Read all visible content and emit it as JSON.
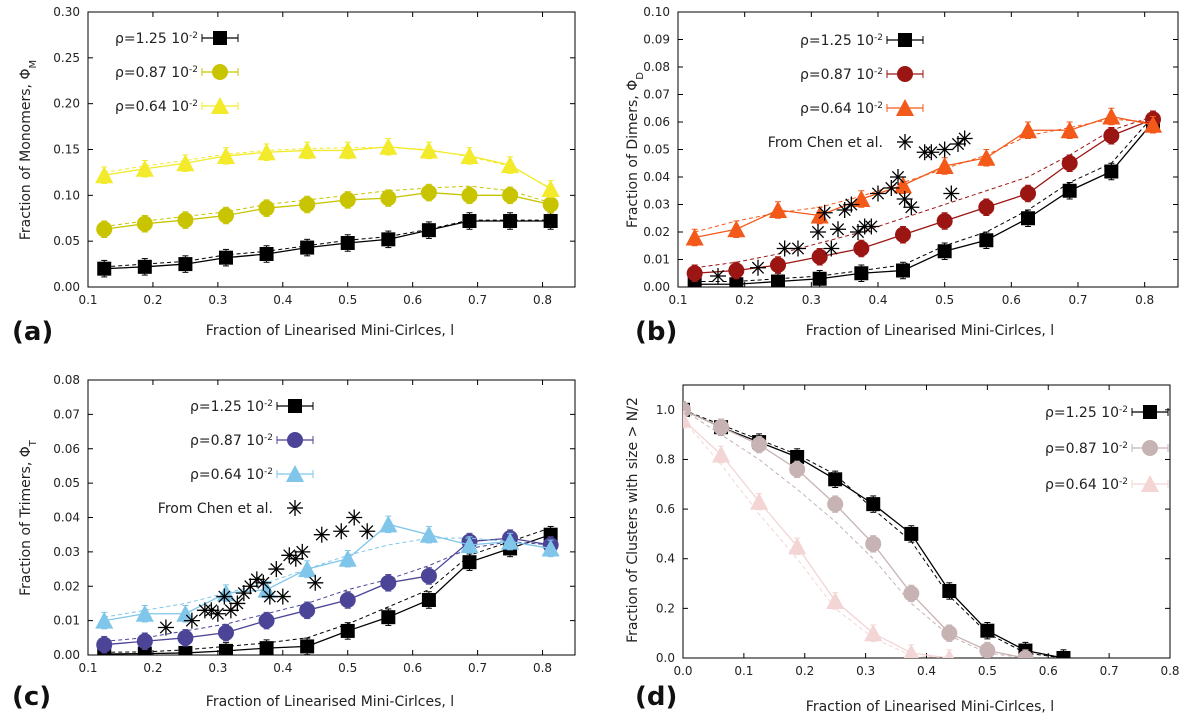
{
  "chart_data": [
    {
      "panel_label": "(a)",
      "type": "line",
      "xlabel": "Fraction of Linearised Mini-Cirlces, l",
      "ylabel": "Fraction of Monomers, Φ_M",
      "xlim": [
        0.1,
        0.85
      ],
      "ylim": [
        0,
        0.3
      ],
      "xticks": [
        "0.1",
        "0.2",
        "0.3",
        "0.4",
        "0.5",
        "0.6",
        "0.7",
        "0.8"
      ],
      "yticks": [
        "0.00",
        "0.05",
        "0.10",
        "0.15",
        "0.20",
        "0.25",
        "0.30"
      ],
      "xtick_values": [
        0.1,
        0.2,
        0.3,
        0.4,
        0.5,
        0.6,
        0.7,
        0.8
      ],
      "ytick_values": [
        0,
        0.05,
        0.1,
        0.15,
        0.2,
        0.25,
        0.3
      ],
      "x": [
        0.125,
        0.1875,
        0.25,
        0.3125,
        0.375,
        0.4375,
        0.5,
        0.5625,
        0.625,
        0.6875,
        0.75,
        0.8125
      ],
      "legend_position": "top-left",
      "series": [
        {
          "name": "ρ=1.25 10⁻²",
          "color": "#000000",
          "marker": "square",
          "values": [
            0.02,
            0.022,
            0.025,
            0.032,
            0.036,
            0.043,
            0.048,
            0.052,
            0.062,
            0.072,
            0.072,
            0.072
          ],
          "dashed": [
            0.022,
            0.025,
            0.028,
            0.035,
            0.039,
            0.045,
            0.051,
            0.055,
            0.063,
            0.073,
            0.073,
            0.073
          ]
        },
        {
          "name": "ρ=0.87 10⁻²",
          "color": "#c8c400",
          "marker": "circle",
          "values": [
            0.063,
            0.069,
            0.073,
            0.078,
            0.086,
            0.09,
            0.095,
            0.097,
            0.103,
            0.1,
            0.1,
            0.09
          ],
          "dashed": [
            0.066,
            0.072,
            0.077,
            0.082,
            0.09,
            0.095,
            0.1,
            0.105,
            0.108,
            0.11,
            0.105,
            0.092
          ]
        },
        {
          "name": "ρ=0.64 10⁻²",
          "color": "#f2ea2a",
          "marker": "triangle",
          "values": [
            0.122,
            0.129,
            0.135,
            0.143,
            0.147,
            0.149,
            0.149,
            0.153,
            0.149,
            0.143,
            0.133,
            0.107
          ],
          "dashed": [
            0.125,
            0.132,
            0.138,
            0.145,
            0.149,
            0.151,
            0.152,
            0.152,
            0.15,
            0.142,
            0.132,
            0.108
          ]
        }
      ]
    },
    {
      "panel_label": "(b)",
      "type": "line",
      "xlabel": "Fraction of Linearised Mini-Cirlces, l",
      "ylabel": "Fraction of Dimers, Φ_D",
      "xlim": [
        0.1,
        0.85
      ],
      "ylim": [
        0,
        0.1
      ],
      "xticks": [
        "0.1",
        "0.2",
        "0.3",
        "0.4",
        "0.5",
        "0.6",
        "0.7",
        "0.8"
      ],
      "yticks": [
        "0.00",
        "0.01",
        "0.02",
        "0.03",
        "0.04",
        "0.05",
        "0.06",
        "0.07",
        "0.08",
        "0.09",
        "0.10"
      ],
      "xtick_values": [
        0.1,
        0.2,
        0.3,
        0.4,
        0.5,
        0.6,
        0.7,
        0.8
      ],
      "ytick_values": [
        0,
        0.01,
        0.02,
        0.03,
        0.04,
        0.05,
        0.06,
        0.07,
        0.08,
        0.09,
        0.1
      ],
      "x": [
        0.125,
        0.1875,
        0.25,
        0.3125,
        0.375,
        0.4375,
        0.5,
        0.5625,
        0.625,
        0.6875,
        0.75,
        0.8125
      ],
      "legend_position": "top-left",
      "series": [
        {
          "name": "ρ=1.25 10⁻²",
          "color": "#000000",
          "marker": "square",
          "values": [
            0.001,
            0.001,
            0.002,
            0.003,
            0.005,
            0.006,
            0.013,
            0.017,
            0.025,
            0.035,
            0.042,
            0.06
          ],
          "dashed": [
            0.002,
            0.002,
            0.003,
            0.004,
            0.006,
            0.008,
            0.015,
            0.02,
            0.028,
            0.038,
            0.045,
            0.062
          ]
        },
        {
          "name": "ρ=0.87 10⁻²",
          "color": "#9b1512",
          "marker": "circle",
          "values": [
            0.005,
            0.006,
            0.008,
            0.011,
            0.014,
            0.019,
            0.024,
            0.029,
            0.034,
            0.045,
            0.055,
            0.061
          ],
          "dashed": [
            0.007,
            0.009,
            0.012,
            0.016,
            0.02,
            0.025,
            0.03,
            0.035,
            0.04,
            0.048,
            0.057,
            0.062
          ]
        },
        {
          "name": "ρ=0.64 10⁻²",
          "color": "#f35a1a",
          "marker": "triangle",
          "values": [
            0.018,
            0.021,
            0.028,
            0.026,
            0.032,
            0.037,
            0.044,
            0.047,
            0.057,
            0.057,
            0.062,
            0.059
          ],
          "dashed": [
            0.02,
            0.024,
            0.027,
            0.029,
            0.033,
            0.038,
            0.043,
            0.048,
            0.055,
            0.058,
            0.061,
            0.06
          ]
        },
        {
          "name": "From Chen et al.",
          "color": "#000000",
          "marker": "star",
          "type": "scatter",
          "x": [
            0.16,
            0.22,
            0.26,
            0.28,
            0.31,
            0.32,
            0.33,
            0.34,
            0.35,
            0.36,
            0.37,
            0.38,
            0.39,
            0.4,
            0.42,
            0.43,
            0.44,
            0.45,
            0.47,
            0.48,
            0.5,
            0.51,
            0.52,
            0.53
          ],
          "values": [
            0.004,
            0.007,
            0.014,
            0.014,
            0.02,
            0.027,
            0.014,
            0.021,
            0.028,
            0.03,
            0.02,
            0.022,
            0.022,
            0.034,
            0.036,
            0.04,
            0.032,
            0.029,
            0.049,
            0.049,
            0.05,
            0.034,
            0.052,
            0.054
          ]
        }
      ]
    },
    {
      "panel_label": "(c)",
      "type": "line",
      "xlabel": "Fraction of Linearised Mini-Cirlces, l",
      "ylabel": "Fraction of Trimers, Φ_T",
      "xlim": [
        0.1,
        0.85
      ],
      "ylim": [
        0,
        0.08
      ],
      "xticks": [
        "0.1",
        "0.2",
        "0.3",
        "0.4",
        "0.5",
        "0.6",
        "0.7",
        "0.8"
      ],
      "yticks": [
        "0.00",
        "0.01",
        "0.02",
        "0.03",
        "0.04",
        "0.05",
        "0.06",
        "0.07",
        "0.08"
      ],
      "xtick_values": [
        0.1,
        0.2,
        0.3,
        0.4,
        0.5,
        0.6,
        0.7,
        0.8
      ],
      "ytick_values": [
        0,
        0.01,
        0.02,
        0.03,
        0.04,
        0.05,
        0.06,
        0.07,
        0.08
      ],
      "x": [
        0.125,
        0.1875,
        0.25,
        0.3125,
        0.375,
        0.4375,
        0.5,
        0.5625,
        0.625,
        0.6875,
        0.75,
        0.8125
      ],
      "legend_position": "top-left",
      "series": [
        {
          "name": "ρ=1.25 10⁻²",
          "color": "#000000",
          "marker": "square",
          "values": [
            0.0003,
            0.0004,
            0.0006,
            0.0012,
            0.002,
            0.0025,
            0.007,
            0.011,
            0.016,
            0.027,
            0.031,
            0.035
          ],
          "dashed": [
            0.0008,
            0.0009,
            0.0015,
            0.0025,
            0.0035,
            0.005,
            0.009,
            0.014,
            0.019,
            0.029,
            0.033,
            0.037
          ]
        },
        {
          "name": "ρ=0.87 10⁻²",
          "color": "#4b4497",
          "marker": "circle",
          "values": [
            0.003,
            0.004,
            0.005,
            0.0065,
            0.01,
            0.013,
            0.016,
            0.021,
            0.023,
            0.033,
            0.034,
            0.032
          ],
          "dashed": [
            0.004,
            0.005,
            0.007,
            0.009,
            0.012,
            0.015,
            0.019,
            0.022,
            0.026,
            0.031,
            0.033,
            0.032
          ]
        },
        {
          "name": "ρ=0.64 10⁻²",
          "color": "#7fc6ea",
          "marker": "triangle",
          "values": [
            0.01,
            0.012,
            0.012,
            0.018,
            0.019,
            0.025,
            0.028,
            0.038,
            0.035,
            0.032,
            0.033,
            0.031
          ],
          "dashed": [
            0.011,
            0.013,
            0.015,
            0.018,
            0.021,
            0.025,
            0.029,
            0.032,
            0.034,
            0.034,
            0.033,
            0.031
          ]
        },
        {
          "name": "From Chen et al.",
          "color": "#000000",
          "marker": "star",
          "type": "scatter",
          "x": [
            0.22,
            0.26,
            0.28,
            0.29,
            0.3,
            0.31,
            0.32,
            0.33,
            0.34,
            0.35,
            0.36,
            0.37,
            0.38,
            0.39,
            0.4,
            0.41,
            0.42,
            0.43,
            0.45,
            0.46,
            0.49,
            0.51,
            0.53
          ],
          "values": [
            0.008,
            0.01,
            0.013,
            0.013,
            0.012,
            0.017,
            0.013,
            0.015,
            0.018,
            0.02,
            0.022,
            0.021,
            0.017,
            0.025,
            0.017,
            0.029,
            0.028,
            0.03,
            0.021,
            0.035,
            0.036,
            0.04,
            0.036
          ]
        }
      ]
    },
    {
      "panel_label": "(d)",
      "type": "line",
      "xlabel": "Fraction of Linearised Mini-Cirlces, l",
      "ylabel": "Fraction of Clusters with size > N/2",
      "xlim": [
        0.0,
        0.8
      ],
      "ylim": [
        0,
        1.1
      ],
      "xticks": [
        "0.0",
        "0.1",
        "0.2",
        "0.3",
        "0.4",
        "0.5",
        "0.6",
        "0.7",
        "0.8"
      ],
      "yticks": [
        "0.0",
        "0.2",
        "0.4",
        "0.6",
        "0.8",
        "1.0"
      ],
      "xtick_values": [
        0,
        0.1,
        0.2,
        0.3,
        0.4,
        0.5,
        0.6,
        0.7,
        0.8
      ],
      "ytick_values": [
        0,
        0.2,
        0.4,
        0.6,
        0.8,
        1.0
      ],
      "x": [
        0,
        0.0625,
        0.125,
        0.1875,
        0.25,
        0.3125,
        0.375,
        0.4375,
        0.5,
        0.5625,
        0.625
      ],
      "legend_position": "right",
      "series": [
        {
          "name": "ρ=1.25 10⁻²",
          "color": "#000000",
          "marker": "square",
          "values": [
            1.0,
            0.93,
            0.87,
            0.81,
            0.72,
            0.62,
            0.5,
            0.27,
            0.11,
            0.03,
            0.0
          ],
          "dashed": [
            1.0,
            0.94,
            0.88,
            0.82,
            0.74,
            0.6,
            0.47,
            0.25,
            0.1,
            0.02,
            0.0
          ]
        },
        {
          "name": "ρ=0.87 10⁻²",
          "color": "#c7b3b3",
          "marker": "circle",
          "values": [
            1.0,
            0.93,
            0.86,
            0.76,
            0.62,
            0.46,
            0.26,
            0.1,
            0.03,
            0.0,
            null
          ],
          "dashed": [
            1.0,
            0.9,
            0.8,
            0.68,
            0.55,
            0.4,
            0.22,
            0.09,
            0.02,
            0.0,
            null
          ]
        },
        {
          "name": "ρ=0.64 10⁻²",
          "color": "#f3d5d5",
          "marker": "triangle",
          "values": [
            0.96,
            0.82,
            0.63,
            0.45,
            0.23,
            0.1,
            0.02,
            0.0,
            null,
            null,
            null
          ],
          "dashed": [
            0.96,
            0.78,
            0.58,
            0.4,
            0.2,
            0.08,
            0.01,
            0.0,
            null,
            null,
            null
          ]
        }
      ]
    }
  ]
}
